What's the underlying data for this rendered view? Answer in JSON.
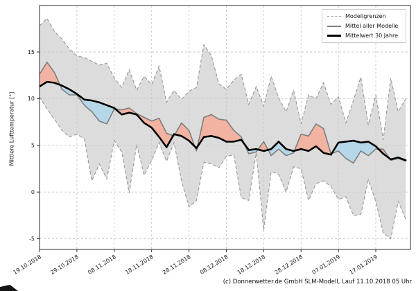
{
  "figure": {
    "y_axis_label": "Mittlere Lufttemperatur [°]",
    "footer": "(c) Donnerwetter.de GmbH SLM-Modell, Lauf 11.10.2018 05 Uhr"
  },
  "legend": {
    "items": [
      {
        "label": "Modellgrenzen",
        "style": "dashed-gray"
      },
      {
        "label": "Mittel aller Modelle",
        "style": "solid-gray"
      },
      {
        "label": "Mittelwert 30 Jahre",
        "style": "solid-black-thick"
      }
    ]
  },
  "colors": {
    "range_fill": "#dcdcdc",
    "range_edge": "#999999",
    "above_mean_fill": "#f2b3a3",
    "below_mean_fill": "#b6d7e8",
    "model_mean_line": "#7d7d7d",
    "climate_mean_line": "#000000",
    "grid": "#c9c9c9",
    "spine": "#2b2b2b"
  },
  "chart_data": {
    "type": "line",
    "title": "",
    "xlabel": "",
    "ylabel": "Mittlere Lufttemperatur [°]",
    "x_unit": "days since 19.10.2018 (step 2)",
    "x_tick_days": [
      0,
      10,
      20,
      30,
      40,
      50,
      60,
      70,
      80,
      90
    ],
    "x_tick_labels": [
      "19.10.2018",
      "29.10.2018",
      "08.11.2018",
      "18.11.2018",
      "28.11.2018",
      "08.12.2018",
      "18.12.2018",
      "28.12.2018",
      "07.01.2019",
      "17.01.2019"
    ],
    "y_ticks": [
      -5,
      0,
      5,
      10,
      15
    ],
    "y_tick_labels": [
      "-5",
      "0",
      "5",
      "10",
      "15"
    ],
    "ylim": [
      -6.1,
      19.1
    ],
    "grid": true,
    "legend_position": "upper right",
    "days": [
      0,
      2,
      4,
      6,
      8,
      10,
      12,
      14,
      16,
      18,
      20,
      22,
      24,
      26,
      28,
      30,
      32,
      34,
      36,
      38,
      40,
      42,
      44,
      46,
      48,
      50,
      52,
      54,
      56,
      58,
      60,
      62,
      64,
      66,
      68,
      70,
      72,
      74,
      76,
      78,
      80,
      82,
      84,
      86,
      88,
      90,
      92,
      94,
      96,
      98
    ],
    "series": [
      {
        "name": "Modellgrenzen (obere Grenze)",
        "values": [
          17.8,
          18.6,
          17.2,
          16.4,
          15.3,
          14.6,
          14.4,
          14.0,
          13.6,
          13.8,
          12.2,
          11.2,
          13.1,
          10.9,
          12.4,
          11.5,
          13.5,
          9.6,
          10.9,
          9.9,
          10.8,
          11.2,
          15.8,
          14.6,
          11.6,
          11.0,
          12.0,
          12.6,
          9.4,
          11.3,
          9.2,
          12.4,
          10.1,
          8.6,
          10.9,
          7.3,
          10.4,
          10.0,
          11.7,
          9.4,
          10.2,
          7.4,
          9.8,
          12.3,
          7.2,
          10.4,
          5.6,
          12.2,
          8.6,
          10.0
        ]
      },
      {
        "name": "Modellgrenzen (untere Grenze)",
        "values": [
          10.2,
          8.9,
          7.8,
          6.6,
          5.9,
          6.2,
          5.7,
          1.2,
          3.0,
          1.4,
          5.5,
          4.3,
          -0.1,
          5.1,
          1.8,
          3.4,
          5.3,
          3.3,
          5.3,
          1.2,
          -1.6,
          -0.9,
          3.2,
          3.0,
          2.6,
          3.8,
          4.0,
          -0.6,
          -0.9,
          4.2,
          -4.1,
          2.2,
          1.9,
          0.0,
          2.7,
          2.5,
          -0.9,
          0.9,
          1.2,
          0.6,
          -0.8,
          -0.5,
          -2.5,
          -2.4,
          1.3,
          -1.0,
          -4.4,
          -5.0,
          -1.0,
          -2.9
        ]
      },
      {
        "name": "Mittel aller Modelle",
        "values": [
          12.6,
          13.9,
          12.8,
          11.0,
          10.4,
          10.4,
          9.3,
          8.6,
          7.6,
          7.3,
          8.9,
          8.8,
          9.0,
          8.4,
          8.0,
          7.6,
          7.9,
          6.3,
          6.0,
          7.4,
          6.6,
          4.4,
          8.0,
          8.3,
          7.8,
          7.7,
          6.6,
          5.9,
          4.1,
          4.3,
          5.4,
          3.9,
          4.6,
          3.9,
          4.2,
          6.2,
          6.0,
          7.3,
          6.8,
          4.1,
          4.4,
          3.6,
          3.1,
          4.4,
          3.9,
          4.6,
          4.6,
          3.4,
          3.6,
          3.3
        ]
      },
      {
        "name": "Mittelwert 30 Jahre",
        "values": [
          11.3,
          11.8,
          11.7,
          11.4,
          11.0,
          10.5,
          9.9,
          9.8,
          9.6,
          9.3,
          9.0,
          8.3,
          8.5,
          8.3,
          7.4,
          6.9,
          5.9,
          4.8,
          6.2,
          6.0,
          5.5,
          4.7,
          5.9,
          6.0,
          5.8,
          5.4,
          5.4,
          5.6,
          4.5,
          4.6,
          4.4,
          4.6,
          5.4,
          4.6,
          4.4,
          4.6,
          4.4,
          4.9,
          4.2,
          4.0,
          5.3,
          5.4,
          5.5,
          5.3,
          5.4,
          4.9,
          4.1,
          3.5,
          3.7,
          3.4
        ]
      }
    ],
    "fill_semantics": {
      "gray_band": "Spannweite aller Modelle (Modellgrenzen)",
      "red": "Mittel aller Modelle liegt über dem 30-jährigen Mittel",
      "blue": "Mittel aller Modelle liegt unter dem 30-jährigen Mittel"
    }
  }
}
